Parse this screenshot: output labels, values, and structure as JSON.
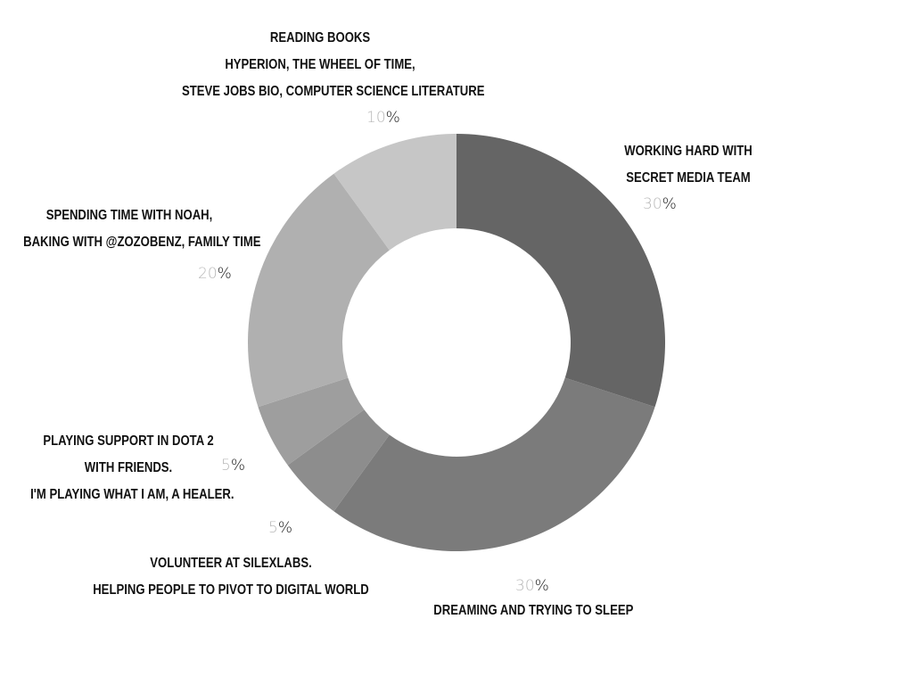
{
  "chart_data": {
    "type": "pie",
    "donut": true,
    "start_angle_deg": 0,
    "direction": "clockwise",
    "percent_sign": "%",
    "slices": [
      {
        "value": 30,
        "value_label": "30",
        "color": "#656565",
        "label_lines": [
          "WORKING HARD WITH",
          "SECRET MEDIA TEAM"
        ]
      },
      {
        "value": 30,
        "value_label": "30",
        "color": "#7b7b7b",
        "label_lines": [
          "DREAMING AND TRYING TO SLEEP"
        ]
      },
      {
        "value": 5,
        "value_label": "5",
        "color": "#8d8d8d",
        "label_lines": [
          "VOLUNTEER AT SILEXLABS.",
          "HELPING PEOPLE TO PIVOT TO DIGITAL WORLD"
        ]
      },
      {
        "value": 5,
        "value_label": "5",
        "color": "#9e9e9e",
        "label_lines": [
          "PLAYING SUPPORT IN DOTA 2",
          "WITH FRIENDS.",
          "I'M PLAYING WHAT I AM, A HEALER."
        ]
      },
      {
        "value": 20,
        "value_label": "20",
        "color": "#b0b0b0",
        "label_lines": [
          "SPENDING TIME WITH NOAH,",
          "BAKING WITH @ZOZOBENZ, FAMILY TIME"
        ]
      },
      {
        "value": 10,
        "value_label": "10",
        "color": "#c6c6c6",
        "label_lines": [
          "READING BOOKS",
          "HYPERION,  THE WHEEL OF TIME,",
          "STEVE JOBS BIO, COMPUTER SCIENCE LITERATURE"
        ]
      }
    ]
  }
}
